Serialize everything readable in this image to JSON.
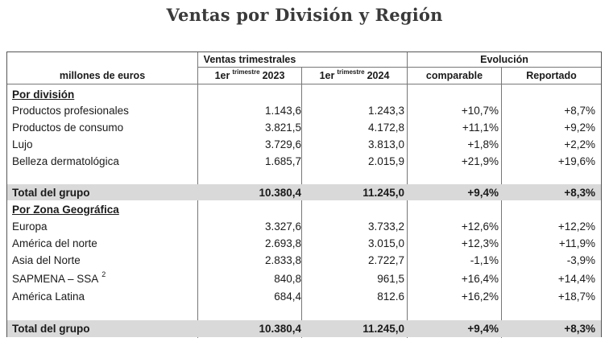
{
  "title": "Ventas por División y Región",
  "header": {
    "units": "millones de euros",
    "group_sales": "Ventas trimestrales",
    "group_evolution": "Evolución",
    "col_2023_prefix": "1er",
    "col_2023_sup": "trimestre",
    "col_2023_year": "2023",
    "col_2024_prefix": "1er",
    "col_2024_sup": "trimestre",
    "col_2024_year": "2024",
    "col_comparable": "comparable",
    "col_reportado": "Reportado"
  },
  "division": {
    "heading": "Por división",
    "rows": [
      {
        "label": "Productos profesionales",
        "v2023": "1.143,6",
        "v2024": "1.243,3",
        "comparable": "+10,7%",
        "reportado": "+8,7%"
      },
      {
        "label": "Productos de consumo",
        "v2023": "3.821,5",
        "v2024": "4.172,8",
        "comparable": "+11,1%",
        "reportado": "+9,2%"
      },
      {
        "label": "Lujo",
        "v2023": "3.729,6",
        "v2024": "3.813,0",
        "comparable": "+1,8%",
        "reportado": "+2,2%"
      },
      {
        "label": "Belleza dermatológica",
        "v2023": "1.685,7",
        "v2024": "2.015,9",
        "comparable": "+21,9%",
        "reportado": "+19,6%"
      }
    ],
    "total": {
      "label": "Total del grupo",
      "v2023": "10.380,4",
      "v2024": "11.245,0",
      "comparable": "+9,4%",
      "reportado": "+8,3%"
    }
  },
  "region": {
    "heading": "Por Zona Geográfica",
    "rows": [
      {
        "label": "Europa",
        "note": "",
        "v2023": "3.327,6",
        "v2024": "3.733,2",
        "comparable": "+12,6%",
        "reportado": "+12,2%"
      },
      {
        "label": "América del norte",
        "note": "",
        "v2023": "2.693,8",
        "v2024": "3.015,0",
        "comparable": "+12,3%",
        "reportado": "+11,9%"
      },
      {
        "label": "Asia del Norte",
        "note": "",
        "v2023": "2.833,8",
        "v2024": "2.722,7",
        "comparable": "-1,1%",
        "reportado": "-3,9%"
      },
      {
        "label": "SAPMENA – SSA",
        "note": "2",
        "v2023": "840,8",
        "v2024": "961,5",
        "comparable": "+16,4%",
        "reportado": "+14,4%"
      },
      {
        "label": "América Latina",
        "note": "",
        "v2023": "684,4",
        "v2024": "812.6",
        "comparable": "+16,2%",
        "reportado": "+18,7%"
      }
    ],
    "total": {
      "label": "Total del grupo",
      "v2023": "10.380,4",
      "v2024": "11.245,0",
      "comparable": "+9,4%",
      "reportado": "+8,3%"
    }
  }
}
